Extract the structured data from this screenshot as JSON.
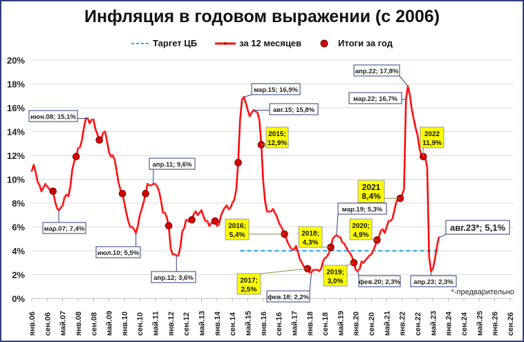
{
  "chart_data": {
    "type": "line",
    "title": "Инфляция в годовом выражении (с 2006)",
    "xlabel": "",
    "ylabel": "",
    "ylim": [
      0,
      20
    ],
    "yticks": [
      "0%",
      "2%",
      "4%",
      "6%",
      "8%",
      "10%",
      "12%",
      "14%",
      "16%",
      "18%",
      "20%"
    ],
    "xticks": [
      "янв.06",
      "сен.06",
      "май.07",
      "янв.08",
      "сен.08",
      "май.09",
      "янв.10",
      "сен.10",
      "май.11",
      "янв.12",
      "сен.12",
      "май.13",
      "янв.14",
      "сен.14",
      "май.15",
      "янв.16",
      "сен.16",
      "май.17",
      "янв.18",
      "сен.18",
      "май.19",
      "янв.20",
      "сен.20",
      "май.21",
      "янв.22",
      "сен.22",
      "май.23",
      "янв.24",
      "сен.24",
      "май.25",
      "янв.26",
      "сен.26"
    ],
    "grid": true,
    "legend_position": "top",
    "legend": [
      "Таргет ЦБ",
      "за 12 месяцев",
      "Итоги за год"
    ],
    "series": [
      {
        "name": "за 12 месяцев",
        "color": "#ff0000",
        "points": [
          [
            "янв.06",
            10.7
          ],
          [
            "фев.06",
            11.2
          ],
          [
            "мар.06",
            10.6
          ],
          [
            "апр.06",
            9.8
          ],
          [
            "май.06",
            9.5
          ],
          [
            "июн.06",
            9.0
          ],
          [
            "июл.06",
            9.3
          ],
          [
            "авг.06",
            9.6
          ],
          [
            "сен.06",
            9.4
          ],
          [
            "окт.06",
            9.2
          ],
          [
            "ноя.06",
            9.0
          ],
          [
            "дек.06",
            9.0
          ],
          [
            "янв.07",
            8.2
          ],
          [
            "фев.07",
            7.6
          ],
          [
            "мар.07",
            7.4
          ],
          [
            "апр.07",
            7.6
          ],
          [
            "май.07",
            7.8
          ],
          [
            "июн.07",
            8.5
          ],
          [
            "июл.07",
            8.7
          ],
          [
            "авг.07",
            8.6
          ],
          [
            "сен.07",
            9.4
          ],
          [
            "окт.07",
            10.8
          ],
          [
            "ноя.07",
            11.5
          ],
          [
            "дек.07",
            11.9
          ],
          [
            "янв.08",
            12.6
          ],
          [
            "фев.08",
            12.7
          ],
          [
            "мар.08",
            13.3
          ],
          [
            "апр.08",
            14.3
          ],
          [
            "май.08",
            15.1
          ],
          [
            "июн.08",
            15.1
          ],
          [
            "июл.08",
            14.7
          ],
          [
            "авг.08",
            15.0
          ],
          [
            "сен.08",
            15.0
          ],
          [
            "окт.08",
            14.2
          ],
          [
            "ноя.08",
            13.8
          ],
          [
            "дек.08",
            13.3
          ],
          [
            "янв.09",
            13.4
          ],
          [
            "фев.09",
            13.9
          ],
          [
            "мар.09",
            14.0
          ],
          [
            "апр.09",
            13.2
          ],
          [
            "май.09",
            12.3
          ],
          [
            "июн.09",
            11.9
          ],
          [
            "июл.09",
            12.0
          ],
          [
            "авг.09",
            11.6
          ],
          [
            "сен.09",
            10.7
          ],
          [
            "окт.09",
            9.7
          ],
          [
            "ноя.09",
            9.1
          ],
          [
            "дек.09",
            8.8
          ],
          [
            "янв.10",
            8.0
          ],
          [
            "фев.10",
            7.2
          ],
          [
            "мар.10",
            6.5
          ],
          [
            "апр.10",
            6.0
          ],
          [
            "май.10",
            6.0
          ],
          [
            "июн.10",
            5.8
          ],
          [
            "июл.10",
            5.5
          ],
          [
            "авг.10",
            6.1
          ],
          [
            "сен.10",
            7.0
          ],
          [
            "окт.10",
            7.5
          ],
          [
            "ноя.10",
            8.1
          ],
          [
            "дек.10",
            8.8
          ],
          [
            "янв.11",
            9.6
          ],
          [
            "фев.11",
            9.5
          ],
          [
            "мар.11",
            9.5
          ],
          [
            "апр.11",
            9.6
          ],
          [
            "май.11",
            9.6
          ],
          [
            "июн.11",
            9.4
          ],
          [
            "июл.11",
            9.0
          ],
          [
            "авг.11",
            8.2
          ],
          [
            "сен.11",
            7.2
          ],
          [
            "окт.11",
            7.2
          ],
          [
            "ноя.11",
            6.8
          ],
          [
            "дек.11",
            6.1
          ],
          [
            "янв.12",
            4.2
          ],
          [
            "фев.12",
            3.7
          ],
          [
            "мар.12",
            3.7
          ],
          [
            "апр.12",
            3.6
          ],
          [
            "май.12",
            3.6
          ],
          [
            "июн.12",
            4.3
          ],
          [
            "июл.12",
            5.6
          ],
          [
            "авг.12",
            5.9
          ],
          [
            "сен.12",
            6.6
          ],
          [
            "окт.12",
            6.5
          ],
          [
            "ноя.12",
            6.5
          ],
          [
            "дек.12",
            6.6
          ],
          [
            "янв.13",
            7.1
          ],
          [
            "фев.13",
            7.3
          ],
          [
            "мар.13",
            7.0
          ],
          [
            "апр.13",
            7.2
          ],
          [
            "май.13",
            7.4
          ],
          [
            "июн.13",
            6.9
          ],
          [
            "июл.13",
            6.5
          ],
          [
            "авг.13",
            6.5
          ],
          [
            "сен.13",
            6.1
          ],
          [
            "окт.13",
            6.3
          ],
          [
            "ноя.13",
            6.5
          ],
          [
            "дек.13",
            6.5
          ],
          [
            "янв.14",
            6.1
          ],
          [
            "фев.14",
            6.2
          ],
          [
            "мар.14",
            6.9
          ],
          [
            "апр.14",
            7.3
          ],
          [
            "май.14",
            7.6
          ],
          [
            "июн.14",
            7.8
          ],
          [
            "июл.14",
            7.5
          ],
          [
            "авг.14",
            7.6
          ],
          [
            "сен.14",
            8.0
          ],
          [
            "окт.14",
            8.3
          ],
          [
            "ноя.14",
            9.1
          ],
          [
            "дек.14",
            11.4
          ],
          [
            "янв.15",
            15.0
          ],
          [
            "фев.15",
            16.7
          ],
          [
            "мар.15",
            16.9
          ],
          [
            "апр.15",
            16.4
          ],
          [
            "май.15",
            15.8
          ],
          [
            "июн.15",
            15.3
          ],
          [
            "июл.15",
            15.6
          ],
          [
            "авг.15",
            15.8
          ],
          [
            "сен.15",
            15.7
          ],
          [
            "окт.15",
            15.6
          ],
          [
            "ноя.15",
            15.0
          ],
          [
            "дек.15",
            12.9
          ],
          [
            "янв.16",
            9.8
          ],
          [
            "фев.16",
            8.1
          ],
          [
            "мар.16",
            7.3
          ],
          [
            "апр.16",
            7.3
          ],
          [
            "май.16",
            7.3
          ],
          [
            "июн.16",
            7.5
          ],
          [
            "июл.16",
            7.2
          ],
          [
            "авг.16",
            6.9
          ],
          [
            "сен.16",
            6.4
          ],
          [
            "окт.16",
            6.1
          ],
          [
            "ноя.16",
            5.8
          ],
          [
            "дек.16",
            5.4
          ],
          [
            "янв.17",
            5.0
          ],
          [
            "фев.17",
            4.6
          ],
          [
            "мар.17",
            4.3
          ],
          [
            "апр.17",
            4.1
          ],
          [
            "май.17",
            4.1
          ],
          [
            "июн.17",
            4.4
          ],
          [
            "июл.17",
            3.9
          ],
          [
            "авг.17",
            3.3
          ],
          [
            "сен.17",
            3.0
          ],
          [
            "окт.17",
            2.7
          ],
          [
            "ноя.17",
            2.5
          ],
          [
            "дек.17",
            2.5
          ],
          [
            "янв.18",
            2.2
          ],
          [
            "фев.18",
            2.2
          ],
          [
            "мар.18",
            2.4
          ],
          [
            "апр.18",
            2.4
          ],
          [
            "май.18",
            2.4
          ],
          [
            "июн.18",
            2.3
          ],
          [
            "июл.18",
            2.5
          ],
          [
            "авг.18",
            3.1
          ],
          [
            "сен.18",
            3.4
          ],
          [
            "окт.18",
            3.5
          ],
          [
            "ноя.18",
            3.8
          ],
          [
            "дек.18",
            4.3
          ],
          [
            "янв.19",
            5.0
          ],
          [
            "фев.19",
            5.2
          ],
          [
            "мар.19",
            5.3
          ],
          [
            "апр.19",
            5.2
          ],
          [
            "май.19",
            5.1
          ],
          [
            "июн.19",
            4.7
          ],
          [
            "июл.19",
            4.6
          ],
          [
            "авг.19",
            4.3
          ],
          [
            "сен.19",
            4.0
          ],
          [
            "окт.19",
            3.8
          ],
          [
            "ноя.19",
            3.5
          ],
          [
            "дек.19",
            3.0
          ],
          [
            "янв.20",
            2.4
          ],
          [
            "фев.20",
            2.3
          ],
          [
            "мар.20",
            2.5
          ],
          [
            "апр.20",
            3.1
          ],
          [
            "май.20",
            3.0
          ],
          [
            "июн.20",
            3.2
          ],
          [
            "июл.20",
            3.4
          ],
          [
            "авг.20",
            3.6
          ],
          [
            "сен.20",
            3.7
          ],
          [
            "окт.20",
            4.0
          ],
          [
            "ноя.20",
            4.4
          ],
          [
            "дек.20",
            4.9
          ],
          [
            "янв.21",
            5.2
          ],
          [
            "фев.21",
            5.7
          ],
          [
            "мар.21",
            5.8
          ],
          [
            "апр.21",
            5.5
          ],
          [
            "май.21",
            6.0
          ],
          [
            "июн.21",
            6.5
          ],
          [
            "июл.21",
            6.5
          ],
          [
            "авг.21",
            6.7
          ],
          [
            "сен.21",
            7.4
          ],
          [
            "окт.21",
            8.1
          ],
          [
            "ноя.21",
            8.4
          ],
          [
            "дек.21",
            8.4
          ],
          [
            "янв.22",
            8.7
          ],
          [
            "фев.22",
            9.2
          ],
          [
            "мар.22",
            16.7
          ],
          [
            "апр.22",
            17.8
          ],
          [
            "май.22",
            17.1
          ],
          [
            "июн.22",
            15.9
          ],
          [
            "июл.22",
            15.1
          ],
          [
            "авг.22",
            14.3
          ],
          [
            "сен.22",
            13.7
          ],
          [
            "окт.22",
            12.6
          ],
          [
            "ноя.22",
            12.0
          ],
          [
            "дек.22",
            11.9
          ],
          [
            "янв.23",
            11.8
          ],
          [
            "фев.23",
            11.0
          ],
          [
            "мар.23",
            3.5
          ],
          [
            "апр.23",
            2.3
          ],
          [
            "май.23",
            2.5
          ],
          [
            "июн.23",
            3.3
          ],
          [
            "июл.23",
            4.3
          ],
          [
            "авг.23*",
            5.1
          ]
        ]
      },
      {
        "name": "Таргет ЦБ",
        "color": "#29a9e0",
        "style": "dashed",
        "value": 4.0,
        "from": "янв.15",
        "to": "авг.23"
      },
      {
        "name": "Итоги за год",
        "color": "#c00000",
        "marker": "circle",
        "points": [
          [
            "2006",
            9.0
          ],
          [
            "2007",
            11.9
          ],
          [
            "2008",
            13.3
          ],
          [
            "2009",
            8.8
          ],
          [
            "2010",
            8.8
          ],
          [
            "2011",
            6.1
          ],
          [
            "2012",
            6.6
          ],
          [
            "2013",
            6.5
          ],
          [
            "2014",
            11.4
          ],
          [
            "2015",
            12.9
          ],
          [
            "2016",
            5.4
          ],
          [
            "2017",
            2.5
          ],
          [
            "2018",
            4.3
          ],
          [
            "2019",
            3.0
          ],
          [
            "2020",
            4.9
          ],
          [
            "2021",
            8.4
          ],
          [
            "2022",
            11.9
          ]
        ]
      }
    ],
    "annotations": [
      {
        "text": "июн.08; 15,1%",
        "style": "white"
      },
      {
        "text": "мар.07; 7,4%",
        "style": "white"
      },
      {
        "text": "июл.10; 5,5%",
        "style": "white"
      },
      {
        "text": "апр.11; 9,6%",
        "style": "white"
      },
      {
        "text": "апр.12; 3,6%",
        "style": "white"
      },
      {
        "text": "мар.15; 16,9%",
        "style": "white"
      },
      {
        "text": "авг.15; 15,8%",
        "style": "white"
      },
      {
        "text": "фев.18; 2,2%",
        "style": "white"
      },
      {
        "text": "мар.19; 5,3%",
        "style": "white"
      },
      {
        "text": "фев.20; 2,3%",
        "style": "white"
      },
      {
        "text": "апр.22; 17,8%",
        "style": "white"
      },
      {
        "text": "мар.22; 16,7%",
        "style": "white"
      },
      {
        "text": "апр.23; 2,3%",
        "style": "white"
      },
      {
        "text": "авг.23*; 5,1%",
        "style": "white-large"
      },
      {
        "text": "2015; 12,9%",
        "style": "yellow"
      },
      {
        "text": "2016; 5,4%",
        "style": "yellow"
      },
      {
        "text": "2017; 2,5%",
        "style": "yellow"
      },
      {
        "text": "2018; 4,3%",
        "style": "yellow"
      },
      {
        "text": "2019; 3,0%",
        "style": "yellow"
      },
      {
        "text": "2020; 4,9%",
        "style": "yellow"
      },
      {
        "text": "2021 8,4%",
        "style": "yellow"
      },
      {
        "text": "2022 11,9%",
        "style": "yellow"
      }
    ],
    "footnote": "*-предварительно"
  },
  "title": "Инфляция в годовом выражении (с 2006)",
  "legend": {
    "target": "Таргет ЦБ",
    "monthly": "за 12 месяцев",
    "yearly": "Итоги за год"
  },
  "footnote": "*-предварительно",
  "colors": {
    "line": "#ff0000",
    "dot": "#d40000",
    "target": "#29a9e0",
    "yellow_label": "#ffff00",
    "frame": "#2f3e7a",
    "label_border": "#2f3e7a"
  }
}
